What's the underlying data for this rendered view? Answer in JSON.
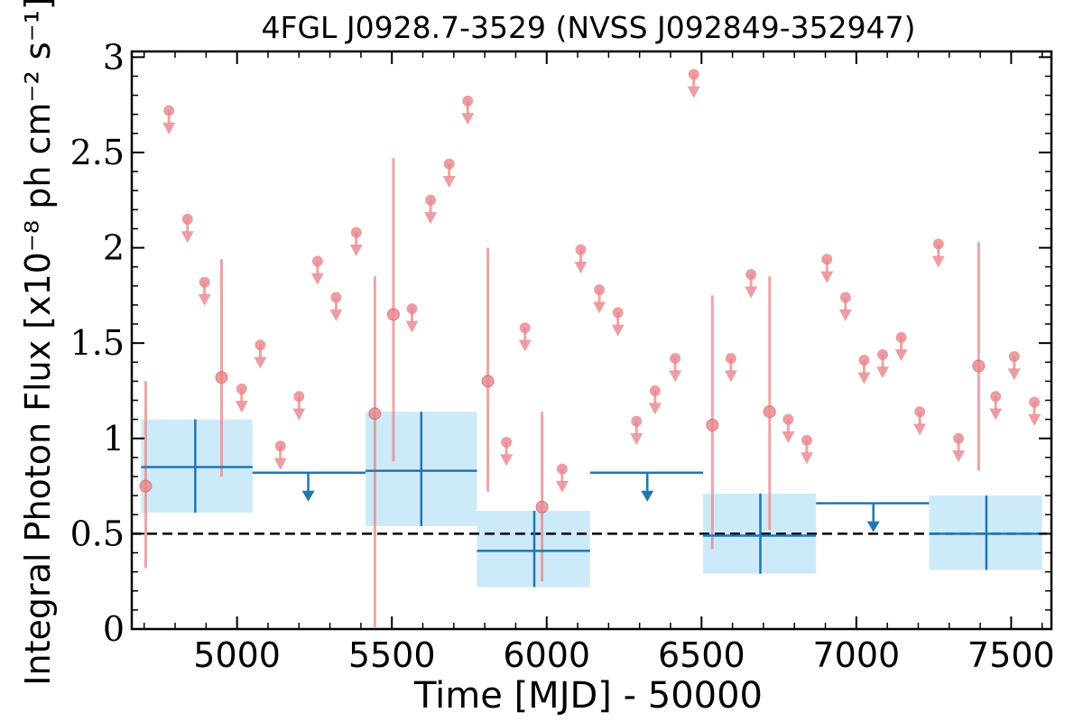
{
  "chart_data": {
    "type": "scatter",
    "title": "4FGL J0928.7-3529 (NVSS J092849-352947)",
    "xlabel": "Time [MJD] - 50000",
    "ylabel": "Integral Photon Flux [x10⁻⁸ ph cm⁻² s⁻¹]",
    "xlim": [
      4660,
      7630
    ],
    "ylim": [
      0,
      3.03
    ],
    "x_ticks": [
      5000,
      5500,
      6000,
      6500,
      7000,
      7500
    ],
    "x_tick_labels": [
      "5000",
      "5500",
      "6000",
      "6500",
      "7000",
      "7500"
    ],
    "y_ticks": [
      0,
      0.5,
      1,
      1.5,
      2,
      2.5,
      3
    ],
    "y_tick_labels": [
      "0",
      "0.5",
      "1",
      "1.5",
      "2",
      "2.5",
      "3"
    ],
    "reference_line": {
      "y": 0.5,
      "style": "dashed",
      "color": "#000000"
    },
    "colors": {
      "fine_bins": "#e8858a",
      "coarse_bins": "#1f77b4",
      "coarse_band": "#cdeaf9"
    },
    "series": [
      {
        "type": "measurements",
        "color": "#e8858a",
        "points": [
          {
            "x": 4705,
            "y": 0.75,
            "lo": 0.32,
            "hi": 1.3
          },
          {
            "x": 4950,
            "y": 1.32,
            "lo": 0.8,
            "hi": 1.94
          },
          {
            "x": 5445,
            "y": 1.13,
            "lo": 0.01,
            "hi": 1.85
          },
          {
            "x": 5505,
            "y": 1.65,
            "lo": 0.88,
            "hi": 2.47
          },
          {
            "x": 5810,
            "y": 1.3,
            "lo": 0.72,
            "hi": 2.0
          },
          {
            "x": 5985,
            "y": 0.64,
            "lo": 0.25,
            "hi": 1.14
          },
          {
            "x": 6535,
            "y": 1.07,
            "lo": 0.42,
            "hi": 1.75
          },
          {
            "x": 6720,
            "y": 1.14,
            "lo": 0.52,
            "hi": 1.85
          },
          {
            "x": 7395,
            "y": 1.38,
            "lo": 0.83,
            "hi": 2.03
          }
        ]
      },
      {
        "type": "upper_limits",
        "color": "#e8858a",
        "points": [
          {
            "x": 4780,
            "y": 2.72
          },
          {
            "x": 4840,
            "y": 2.15
          },
          {
            "x": 4895,
            "y": 1.82
          },
          {
            "x": 5015,
            "y": 1.26
          },
          {
            "x": 5075,
            "y": 1.49
          },
          {
            "x": 5140,
            "y": 0.96
          },
          {
            "x": 5200,
            "y": 1.22
          },
          {
            "x": 5260,
            "y": 1.93
          },
          {
            "x": 5320,
            "y": 1.74
          },
          {
            "x": 5385,
            "y": 2.08
          },
          {
            "x": 5565,
            "y": 1.68
          },
          {
            "x": 5625,
            "y": 2.25
          },
          {
            "x": 5685,
            "y": 2.44
          },
          {
            "x": 5745,
            "y": 2.77
          },
          {
            "x": 5870,
            "y": 0.98
          },
          {
            "x": 5930,
            "y": 1.58
          },
          {
            "x": 6050,
            "y": 0.84
          },
          {
            "x": 6110,
            "y": 1.99
          },
          {
            "x": 6170,
            "y": 1.78
          },
          {
            "x": 6230,
            "y": 1.66
          },
          {
            "x": 6290,
            "y": 1.09
          },
          {
            "x": 6350,
            "y": 1.25
          },
          {
            "x": 6415,
            "y": 1.42
          },
          {
            "x": 6475,
            "y": 2.91
          },
          {
            "x": 6595,
            "y": 1.42
          },
          {
            "x": 6660,
            "y": 1.86
          },
          {
            "x": 6780,
            "y": 1.1
          },
          {
            "x": 6840,
            "y": 0.99
          },
          {
            "x": 6905,
            "y": 1.94
          },
          {
            "x": 6965,
            "y": 1.74
          },
          {
            "x": 7025,
            "y": 1.41
          },
          {
            "x": 7085,
            "y": 1.44
          },
          {
            "x": 7145,
            "y": 1.53
          },
          {
            "x": 7205,
            "y": 1.14
          },
          {
            "x": 7265,
            "y": 2.02
          },
          {
            "x": 7330,
            "y": 1.0
          },
          {
            "x": 7450,
            "y": 1.22
          },
          {
            "x": 7510,
            "y": 1.43
          },
          {
            "x": 7575,
            "y": 1.19
          }
        ]
      },
      {
        "type": "coarse_bins",
        "color": "#1f77b4",
        "bins": [
          {
            "x": 4865,
            "x0": 4690,
            "x1": 5050,
            "y": 0.85,
            "lo": 0.61,
            "hi": 1.1,
            "upper_limit": false
          },
          {
            "x": 5230,
            "x0": 5050,
            "x1": 5415,
            "y": 0.82,
            "upper_limit": true
          },
          {
            "x": 5595,
            "x0": 5415,
            "x1": 5775,
            "y": 0.83,
            "lo": 0.54,
            "hi": 1.14,
            "upper_limit": false
          },
          {
            "x": 5960,
            "x0": 5775,
            "x1": 6140,
            "y": 0.41,
            "lo": 0.22,
            "hi": 0.62,
            "upper_limit": false
          },
          {
            "x": 6325,
            "x0": 6140,
            "x1": 6505,
            "y": 0.82,
            "upper_limit": true
          },
          {
            "x": 6690,
            "x0": 6505,
            "x1": 6870,
            "y": 0.49,
            "lo": 0.29,
            "hi": 0.71,
            "upper_limit": false
          },
          {
            "x": 7055,
            "x0": 6870,
            "x1": 7235,
            "y": 0.66,
            "upper_limit": true
          },
          {
            "x": 7420,
            "x0": 7235,
            "x1": 7600,
            "y": 0.5,
            "lo": 0.31,
            "hi": 0.7,
            "upper_limit": false
          }
        ]
      }
    ]
  }
}
